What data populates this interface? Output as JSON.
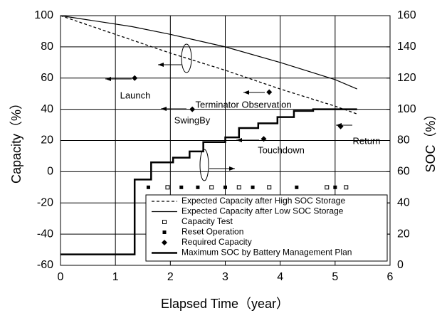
{
  "chart_data": {
    "type": "line",
    "xlabel": "Elapsed Time（year）",
    "ylabel": "Capacity（%）",
    "y2label": "SOC（%）",
    "xlim": [
      0,
      6
    ],
    "xticks": [
      0,
      1,
      2,
      3,
      4,
      5,
      6
    ],
    "ylim": [
      -60,
      100
    ],
    "yticks": [
      -60,
      -40,
      -20,
      0,
      20,
      40,
      60,
      80,
      100
    ],
    "y2lim": [
      0,
      160
    ],
    "y2ticks": [
      0,
      20,
      40,
      60,
      80,
      100,
      120,
      140,
      160
    ],
    "grid": true,
    "legend": "lower right",
    "series": [
      {
        "name": "Expected Capacity after High SOC Storage",
        "color": "#000000",
        "style": "dashed",
        "x": [
          0,
          1,
          2,
          3,
          4,
          5,
          5.4
        ],
        "values": [
          100,
          88,
          76,
          65,
          53,
          42,
          37
        ]
      },
      {
        "name": "Expected Capacity after Low SOC Storage",
        "color": "#000000",
        "style": "solid",
        "x": [
          0,
          1.3,
          2,
          3,
          4,
          5,
          5.4
        ],
        "values": [
          100,
          93,
          88,
          80,
          70,
          59,
          53
        ]
      },
      {
        "name": "Capacity Test",
        "color": "#000000",
        "style": "open-square",
        "x": [
          1.95,
          2.75,
          3.25,
          3.8,
          4.85,
          5.2
        ],
        "values": [
          -10,
          -10,
          -10,
          -10,
          -10,
          -10
        ]
      },
      {
        "name": "Reset Operation",
        "color": "#000000",
        "style": "filled-square",
        "x": [
          1.6,
          2.2,
          2.5,
          3.0,
          3.5,
          4.3,
          5.0
        ],
        "values": [
          -10,
          -10,
          -10,
          -10,
          -10,
          -10,
          -10
        ]
      },
      {
        "name": "Required Capacity",
        "color": "#000000",
        "style": "diamond",
        "x": [
          1.35,
          2.4,
          3.8,
          3.7,
          5.1
        ],
        "values": [
          60,
          40,
          51,
          21,
          29
        ]
      },
      {
        "name": "Maximum SOC by Battery Management Plan",
        "color": "#000000",
        "style": "step",
        "axis": "y2",
        "x": [
          0,
          1.35,
          1.65,
          2.05,
          2.35,
          2.6,
          3.0,
          3.25,
          3.6,
          3.95,
          4.25,
          4.6,
          5.4
        ],
        "values": [
          7,
          55,
          66,
          69,
          73,
          79,
          82,
          88,
          91,
          95,
          99,
          100,
          100
        ]
      }
    ],
    "annotations": [
      "Launch",
      "SwingBy",
      "Terminator Observation",
      "Touchdown",
      "Return"
    ]
  }
}
